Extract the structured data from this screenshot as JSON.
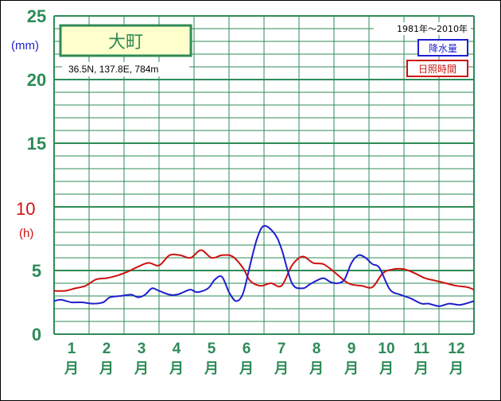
{
  "station": {
    "name": "大町",
    "coords": "36.5N,  137.8E,  784m"
  },
  "period": "1981年〜2010年",
  "legend": {
    "precipitation": "降水量",
    "sunshine": "日照時間"
  },
  "axis": {
    "left_unit_precip": "(mm)",
    "left_unit_sun": "(h)",
    "ticks": [
      "0",
      "5",
      "10",
      "15",
      "20",
      "25"
    ],
    "month_kanji": "月"
  },
  "colors": {
    "grid": "#2e8b57",
    "precip": "#1f1fd0",
    "sun": "#cc1111",
    "station_box_fill": "#ffffcc"
  },
  "chart_data": {
    "type": "line",
    "categories": [
      "1",
      "2",
      "3",
      "4",
      "5",
      "6",
      "7",
      "8",
      "9",
      "10",
      "11",
      "12"
    ],
    "ylim": [
      0,
      25
    ],
    "x_range": [
      0.5,
      12.5
    ],
    "series": [
      {
        "name": "降水量",
        "x": [
          0.5,
          0.7,
          1.0,
          1.3,
          1.6,
          1.9,
          2.1,
          2.4,
          2.7,
          2.9,
          3.1,
          3.3,
          3.5,
          3.8,
          4.0,
          4.2,
          4.4,
          4.6,
          4.9,
          5.1,
          5.3,
          5.5,
          5.7,
          5.9,
          6.1,
          6.3,
          6.5,
          6.8,
          7.0,
          7.3,
          7.6,
          7.8,
          8.0,
          8.2,
          8.4,
          8.6,
          8.8,
          9.0,
          9.2,
          9.4,
          9.6,
          9.8,
          10.1,
          10.4,
          10.7,
          11.0,
          11.2,
          11.5,
          11.8,
          12.1,
          12.5
        ],
        "values": [
          2.6,
          2.7,
          2.5,
          2.5,
          2.4,
          2.5,
          2.9,
          3.0,
          3.1,
          2.9,
          3.1,
          3.6,
          3.4,
          3.1,
          3.1,
          3.3,
          3.5,
          3.3,
          3.6,
          4.3,
          4.5,
          3.3,
          2.6,
          3.2,
          5.4,
          7.5,
          8.5,
          7.9,
          6.7,
          4.0,
          3.6,
          3.9,
          4.2,
          4.4,
          4.1,
          4.0,
          4.3,
          5.6,
          6.2,
          6.0,
          5.5,
          5.2,
          3.5,
          3.1,
          2.8,
          2.4,
          2.4,
          2.2,
          2.4,
          2.3,
          2.6
        ]
      },
      {
        "name": "日照時間",
        "x": [
          0.5,
          0.8,
          1.1,
          1.4,
          1.7,
          2.0,
          2.3,
          2.6,
          2.9,
          3.2,
          3.5,
          3.8,
          4.1,
          4.4,
          4.7,
          5.0,
          5.3,
          5.6,
          5.9,
          6.1,
          6.4,
          6.7,
          7.0,
          7.3,
          7.6,
          7.9,
          8.2,
          8.5,
          8.8,
          9.0,
          9.3,
          9.6,
          9.9,
          10.2,
          10.5,
          10.8,
          11.1,
          11.4,
          11.7,
          12.0,
          12.3,
          12.5
        ],
        "values": [
          3.4,
          3.4,
          3.6,
          3.8,
          4.3,
          4.4,
          4.6,
          4.9,
          5.3,
          5.6,
          5.4,
          6.2,
          6.2,
          6.0,
          6.6,
          6.0,
          6.2,
          6.1,
          5.2,
          4.2,
          3.8,
          4.0,
          3.8,
          5.4,
          6.1,
          5.6,
          5.5,
          4.9,
          4.2,
          3.9,
          3.8,
          3.7,
          4.8,
          5.1,
          5.1,
          4.8,
          4.4,
          4.2,
          4.0,
          3.8,
          3.7,
          3.5
        ]
      }
    ]
  }
}
